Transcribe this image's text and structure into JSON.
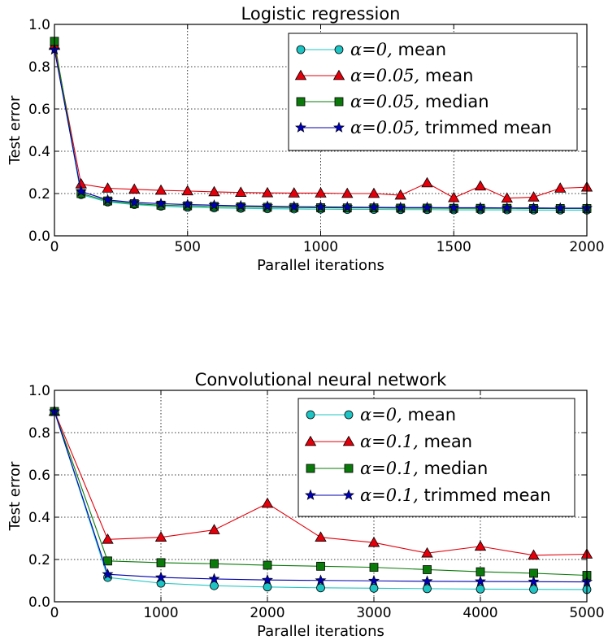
{
  "chart_data": [
    {
      "type": "line",
      "title": "Logistic regression",
      "xlabel": "Parallel iterations",
      "ylabel": "Test error",
      "xlim": [
        0,
        2000
      ],
      "ylim": [
        0,
        1.0
      ],
      "xticks": [
        "0",
        "500",
        "1000",
        "1500",
        "2000"
      ],
      "yticks": [
        "0.0",
        "0.2",
        "0.4",
        "0.6",
        "0.8",
        "1.0"
      ],
      "grid": true,
      "legend_position": "top-right",
      "x": [
        0,
        100,
        200,
        300,
        400,
        500,
        600,
        700,
        800,
        900,
        1000,
        1100,
        1200,
        1300,
        1400,
        1500,
        1600,
        1700,
        1800,
        1900,
        2000
      ],
      "series": [
        {
          "legend_math": "α=0,",
          "legend_text": "mean",
          "color": "#1ec4c4",
          "marker": "circle",
          "values": [
            0.9,
            0.195,
            0.16,
            0.148,
            0.14,
            0.135,
            0.132,
            0.13,
            0.128,
            0.127,
            0.126,
            0.125,
            0.125,
            0.124,
            0.124,
            0.123,
            0.123,
            0.123,
            0.122,
            0.122,
            0.122
          ]
        },
        {
          "legend_math": "α=0.05,",
          "legend_text": "mean",
          "color": "#e3000b",
          "marker": "triangle",
          "values": [
            0.9,
            0.245,
            0.225,
            0.22,
            0.215,
            0.212,
            0.208,
            0.205,
            0.203,
            0.202,
            0.202,
            0.2,
            0.2,
            0.192,
            0.25,
            0.18,
            0.235,
            0.178,
            0.183,
            0.225,
            0.23
          ]
        },
        {
          "legend_math": "α=0.05,",
          "legend_text": "median",
          "color": "#0a7a0a",
          "marker": "square",
          "values": [
            0.92,
            0.2,
            0.165,
            0.152,
            0.145,
            0.142,
            0.139,
            0.137,
            0.135,
            0.134,
            0.133,
            0.132,
            0.132,
            0.131,
            0.131,
            0.13,
            0.13,
            0.13,
            0.129,
            0.129,
            0.129
          ]
        },
        {
          "legend_math": "α=0.05,",
          "legend_text": "trimmed mean",
          "color": "#0000b0",
          "marker": "star",
          "values": [
            0.88,
            0.21,
            0.17,
            0.158,
            0.152,
            0.148,
            0.145,
            0.142,
            0.14,
            0.138,
            0.137,
            0.136,
            0.135,
            0.134,
            0.134,
            0.133,
            0.133,
            0.132,
            0.132,
            0.131,
            0.131
          ]
        }
      ]
    },
    {
      "type": "line",
      "title": "Convolutional neural network",
      "xlabel": "Parallel iterations",
      "ylabel": "Test error",
      "xlim": [
        0,
        5000
      ],
      "ylim": [
        0,
        1.0
      ],
      "xticks": [
        "0",
        "1000",
        "2000",
        "3000",
        "4000",
        "5000"
      ],
      "yticks": [
        "0.0",
        "0.2",
        "0.4",
        "0.6",
        "0.8",
        "1.0"
      ],
      "grid": true,
      "legend_position": "top-right",
      "x": [
        0,
        500,
        1000,
        1500,
        2000,
        2500,
        3000,
        3500,
        4000,
        4500,
        5000
      ],
      "series": [
        {
          "legend_math": "α=0,",
          "legend_text": "mean",
          "color": "#1ec4c4",
          "marker": "circle",
          "values": [
            0.9,
            0.115,
            0.088,
            0.076,
            0.07,
            0.066,
            0.064,
            0.062,
            0.06,
            0.059,
            0.058
          ]
        },
        {
          "legend_math": "α=0.1,",
          "legend_text": "mean",
          "color": "#e3000b",
          "marker": "triangle",
          "values": [
            0.9,
            0.295,
            0.305,
            0.34,
            0.465,
            0.305,
            0.28,
            0.23,
            0.262,
            0.22,
            0.225
          ]
        },
        {
          "legend_math": "α=0.1,",
          "legend_text": "median",
          "color": "#0a7a0a",
          "marker": "square",
          "values": [
            0.9,
            0.193,
            0.185,
            0.18,
            0.173,
            0.168,
            0.163,
            0.152,
            0.142,
            0.135,
            0.125
          ]
        },
        {
          "legend_math": "α=0.1,",
          "legend_text": "trimmed mean",
          "color": "#0000b0",
          "marker": "star",
          "values": [
            0.9,
            0.13,
            0.115,
            0.108,
            0.103,
            0.101,
            0.099,
            0.097,
            0.096,
            0.095,
            0.094
          ]
        }
      ]
    }
  ]
}
